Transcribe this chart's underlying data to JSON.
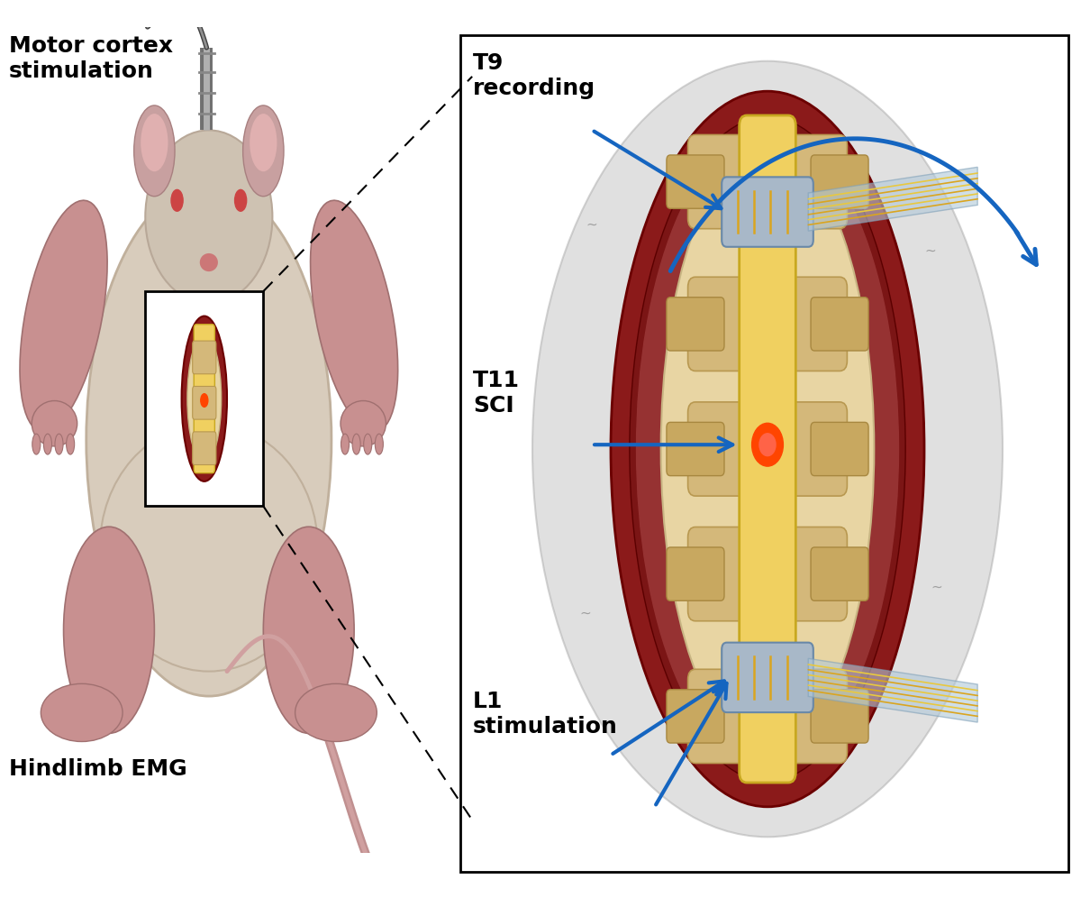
{
  "bg_color": "#ffffff",
  "labels": {
    "motor_cortex": "Motor cortex\nstimulation",
    "hindlimb_emg": "Hindlimb EMG",
    "t9_recording": "T9\nrecording",
    "t11_sci": "T11\nSCI",
    "l1_stimulation": "L1\nstimulation"
  },
  "label_fontsize": 18,
  "arrow_color": "#1565C0",
  "text_color": "#000000",
  "surrounding_ellipse_color": "#C8C8C8",
  "dura_outer_color": "#8B1A1A",
  "dura_inner_color": "#7B1515",
  "canal_color": "#E8D5A3",
  "vertebra_color": "#D4B87A",
  "vertebra_edge": "#B89850",
  "cord_color": "#F0D060",
  "cord_edge": "#C8A820",
  "cuff_color": "#A8B8C8",
  "cuff_edge": "#6888A8",
  "wire_color": "#DAA520",
  "ribbon_color": "#B0C8D8",
  "injury_color": "#FF4500",
  "rat_body_color": "#D8CCBC",
  "rat_body_edge": "#C0B09C",
  "rat_head_color": "#D0C4B4",
  "rat_limb_color": "#C89090",
  "rat_limb_edge": "#A07070",
  "ear_color": "#C8A0A0",
  "ear_inner": "#E0B0B0",
  "eye_color": "#CC4444",
  "nose_color": "#CC7777",
  "tail_color": "#C09090",
  "tail_highlight": "#D0A0A0",
  "connector_color": "#909090",
  "connector_edge": "#606060",
  "connector_highlight": "#C0C0C0",
  "wire_dark": "#505050",
  "wire_light": "#808080"
}
